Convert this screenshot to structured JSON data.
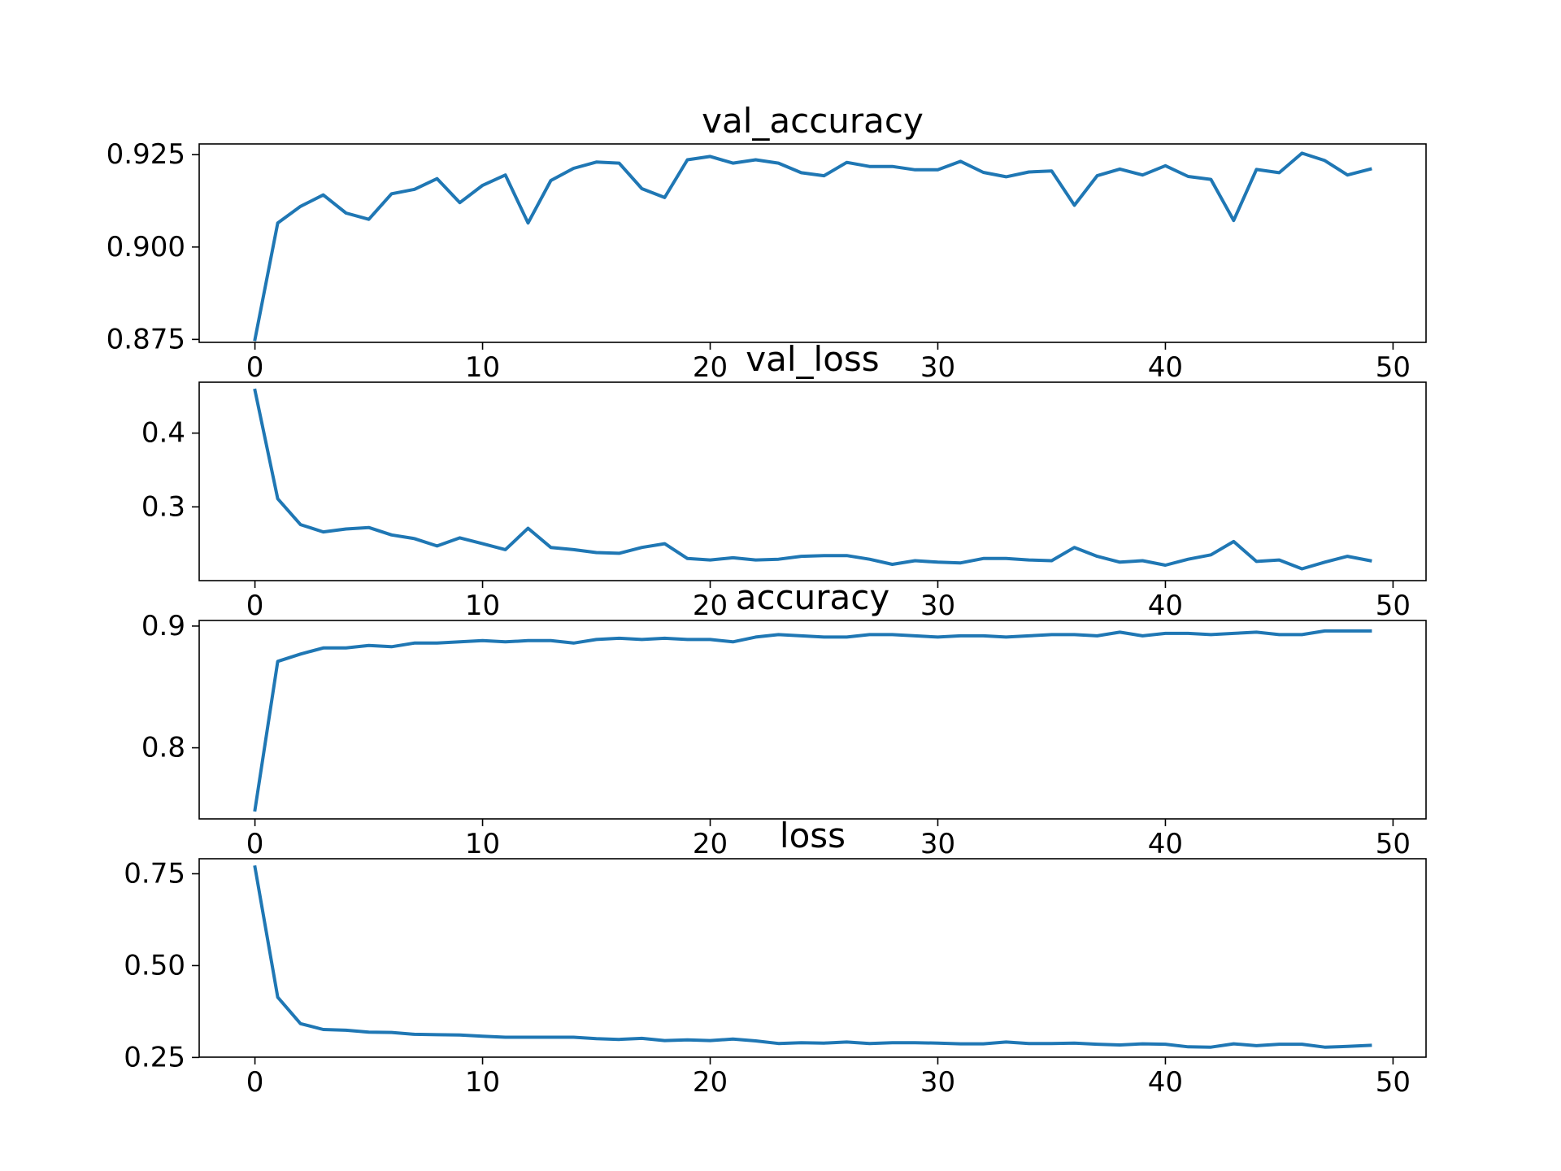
{
  "chart_data": [
    {
      "type": "line",
      "title": "val_accuracy",
      "xlabel": "",
      "ylabel": "",
      "xlim": [
        -2.45,
        51.45
      ],
      "ylim": [
        0.8742,
        0.9279
      ],
      "xticks": [
        "0",
        "10",
        "20",
        "30",
        "40",
        "50"
      ],
      "yticks": [
        "0.875",
        "0.900",
        "0.925"
      ],
      "grid": false,
      "color": "#1f77b4",
      "x": [
        0,
        1,
        2,
        3,
        4,
        5,
        6,
        7,
        8,
        9,
        10,
        11,
        12,
        13,
        14,
        15,
        16,
        17,
        18,
        19,
        20,
        21,
        22,
        23,
        24,
        25,
        26,
        27,
        28,
        29,
        30,
        31,
        32,
        33,
        34,
        35,
        36,
        37,
        38,
        39,
        40,
        41,
        42,
        43,
        44,
        45,
        46,
        47,
        48,
        49
      ],
      "y": [
        0.875,
        0.9065,
        0.911,
        0.9141,
        0.9092,
        0.9075,
        0.9144,
        0.9156,
        0.9185,
        0.912,
        0.9167,
        0.9195,
        0.9065,
        0.918,
        0.9213,
        0.923,
        0.9227,
        0.9158,
        0.9134,
        0.9236,
        0.9245,
        0.9227,
        0.9236,
        0.9227,
        0.9201,
        0.9193,
        0.9229,
        0.9218,
        0.9218,
        0.9209,
        0.9209,
        0.9232,
        0.9202,
        0.919,
        0.9203,
        0.9206,
        0.9113,
        0.9193,
        0.9211,
        0.9195,
        0.922,
        0.9191,
        0.9183,
        0.9072,
        0.921,
        0.9201,
        0.9254,
        0.9234,
        0.9195,
        0.9211
      ]
    },
    {
      "type": "line",
      "title": "val_loss",
      "xlabel": "",
      "ylabel": "",
      "xlim": [
        -2.45,
        51.45
      ],
      "ylim": [
        0.2,
        0.469
      ],
      "xticks": [
        "0",
        "10",
        "20",
        "30",
        "40",
        "50"
      ],
      "yticks": [
        "0.3",
        "0.4"
      ],
      "grid": false,
      "color": "#1f77b4",
      "x": [
        0,
        1,
        2,
        3,
        4,
        5,
        6,
        7,
        8,
        9,
        10,
        11,
        12,
        13,
        14,
        15,
        16,
        17,
        18,
        19,
        20,
        21,
        22,
        23,
        24,
        25,
        26,
        27,
        28,
        29,
        30,
        31,
        32,
        33,
        34,
        35,
        36,
        37,
        38,
        39,
        40,
        41,
        42,
        43,
        44,
        45,
        46,
        47,
        48,
        49
      ],
      "y": [
        0.458,
        0.311,
        0.276,
        0.266,
        0.27,
        0.272,
        0.262,
        0.257,
        0.247,
        0.258,
        0.25,
        0.242,
        0.271,
        0.245,
        0.242,
        0.238,
        0.237,
        0.245,
        0.25,
        0.23,
        0.228,
        0.231,
        0.228,
        0.229,
        0.233,
        0.234,
        0.234,
        0.229,
        0.222,
        0.227,
        0.225,
        0.224,
        0.23,
        0.23,
        0.228,
        0.227,
        0.245,
        0.233,
        0.225,
        0.227,
        0.221,
        0.229,
        0.235,
        0.253,
        0.226,
        0.228,
        0.216,
        0.225,
        0.233,
        0.227
      ]
    },
    {
      "type": "line",
      "title": "accuracy",
      "xlabel": "",
      "ylabel": "",
      "xlim": [
        -2.45,
        51.45
      ],
      "ylim": [
        0.7416,
        0.9046
      ],
      "xticks": [
        "0",
        "10",
        "20",
        "30",
        "40",
        "50"
      ],
      "yticks": [
        "0.8",
        "0.9"
      ],
      "grid": false,
      "color": "#1f77b4",
      "x": [
        0,
        1,
        2,
        3,
        4,
        5,
        6,
        7,
        8,
        9,
        10,
        11,
        12,
        13,
        14,
        15,
        16,
        17,
        18,
        19,
        20,
        21,
        22,
        23,
        24,
        25,
        26,
        27,
        28,
        29,
        30,
        31,
        32,
        33,
        34,
        35,
        36,
        37,
        38,
        39,
        40,
        41,
        42,
        43,
        44,
        45,
        46,
        47,
        48,
        49
      ],
      "y": [
        0.749,
        0.871,
        0.877,
        0.882,
        0.882,
        0.884,
        0.883,
        0.886,
        0.886,
        0.887,
        0.888,
        0.887,
        0.888,
        0.888,
        0.886,
        0.889,
        0.89,
        0.889,
        0.89,
        0.889,
        0.889,
        0.887,
        0.891,
        0.893,
        0.892,
        0.891,
        0.891,
        0.893,
        0.893,
        0.892,
        0.891,
        0.892,
        0.892,
        0.891,
        0.892,
        0.893,
        0.893,
        0.892,
        0.895,
        0.892,
        0.894,
        0.894,
        0.893,
        0.894,
        0.895,
        0.893,
        0.893,
        0.896,
        0.896,
        0.896
      ]
    },
    {
      "type": "line",
      "title": "loss",
      "xlabel": "",
      "ylabel": "",
      "xlim": [
        -2.45,
        51.45
      ],
      "ylim": [
        0.2508,
        0.7909
      ],
      "xticks": [
        "0",
        "10",
        "20",
        "30",
        "40",
        "50"
      ],
      "yticks": [
        "0.25",
        "0.50",
        "0.75"
      ],
      "grid": false,
      "color": "#1f77b4",
      "x": [
        0,
        1,
        2,
        3,
        4,
        5,
        6,
        7,
        8,
        9,
        10,
        11,
        12,
        13,
        14,
        15,
        16,
        17,
        18,
        19,
        20,
        21,
        22,
        23,
        24,
        25,
        26,
        27,
        28,
        29,
        30,
        31,
        32,
        33,
        34,
        35,
        36,
        37,
        38,
        39,
        40,
        41,
        42,
        43,
        44,
        45,
        46,
        47,
        48,
        49
      ],
      "y": [
        0.768,
        0.414,
        0.342,
        0.326,
        0.324,
        0.319,
        0.318,
        0.313,
        0.312,
        0.311,
        0.308,
        0.305,
        0.305,
        0.305,
        0.305,
        0.301,
        0.299,
        0.302,
        0.296,
        0.298,
        0.296,
        0.3,
        0.295,
        0.288,
        0.29,
        0.289,
        0.292,
        0.288,
        0.29,
        0.29,
        0.289,
        0.287,
        0.287,
        0.292,
        0.288,
        0.288,
        0.289,
        0.286,
        0.284,
        0.287,
        0.286,
        0.279,
        0.278,
        0.287,
        0.282,
        0.286,
        0.286,
        0.278,
        0.28,
        0.283
      ]
    }
  ]
}
